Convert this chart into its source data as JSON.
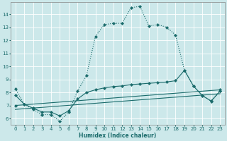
{
  "xlabel": "Humidex (Indice chaleur)",
  "bg_color": "#cce8ea",
  "grid_color": "#ffffff",
  "line_color": "#1a6b6b",
  "xlim": [
    -0.5,
    23.5
  ],
  "ylim": [
    5.5,
    14.9
  ],
  "xticks": [
    0,
    1,
    2,
    3,
    4,
    5,
    6,
    7,
    8,
    9,
    10,
    11,
    12,
    13,
    14,
    15,
    16,
    17,
    18,
    19,
    20,
    21,
    22,
    23
  ],
  "yticks": [
    6,
    7,
    8,
    9,
    10,
    11,
    12,
    13,
    14
  ],
  "curve1_x": [
    0,
    1,
    2,
    3,
    4,
    5,
    6,
    7,
    8,
    9,
    10,
    11,
    12,
    13,
    14,
    15,
    16,
    17,
    18,
    19,
    20,
    21,
    22,
    23
  ],
  "curve1_y": [
    8.3,
    7.1,
    6.7,
    6.3,
    6.3,
    5.8,
    6.5,
    8.1,
    9.3,
    12.3,
    13.2,
    13.3,
    13.3,
    14.5,
    14.6,
    13.1,
    13.2,
    13.0,
    12.4,
    9.7,
    8.5,
    7.8,
    7.3,
    8.1
  ],
  "curve2_x": [
    0,
    1,
    2,
    3,
    4,
    5,
    6,
    7,
    8,
    9,
    10,
    11,
    12,
    13,
    14,
    15,
    16,
    17,
    18,
    19,
    20,
    21,
    22,
    23
  ],
  "curve2_y": [
    7.8,
    7.1,
    6.8,
    6.5,
    6.5,
    6.2,
    6.6,
    7.5,
    8.0,
    8.2,
    8.35,
    8.45,
    8.5,
    8.6,
    8.65,
    8.7,
    8.75,
    8.8,
    8.9,
    9.7,
    8.5,
    7.75,
    7.35,
    8.1
  ],
  "curve3_x": [
    0,
    23
  ],
  "curve3_y": [
    7.0,
    8.2
  ],
  "curve4_x": [
    0,
    23
  ],
  "curve4_y": [
    6.7,
    7.9
  ],
  "markersize": 2.2,
  "linewidth": 0.8
}
